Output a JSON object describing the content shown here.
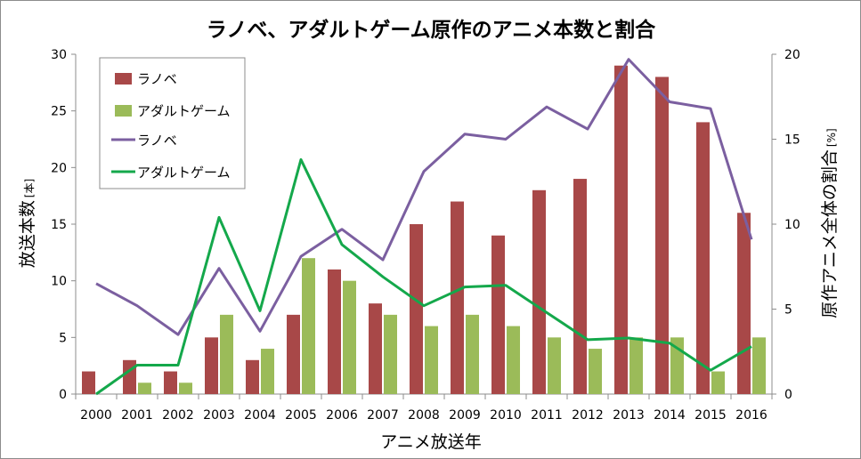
{
  "chart_data": {
    "type": "bar+line",
    "title": "ラノベ、アダルトゲーム原作のアニメ本数と割合",
    "xlabel": "アニメ放送年",
    "ylabel": "放送本数",
    "ylabel_unit": "[本]",
    "y2label": "原作アニメ全体の割合",
    "y2label_unit": "[%]",
    "ylim": [
      0,
      30
    ],
    "y2lim": [
      0,
      20
    ],
    "yticks": [
      "0",
      "5",
      "10",
      "15",
      "20",
      "25",
      "30"
    ],
    "y2ticks": [
      "0",
      "5",
      "10",
      "15",
      "20"
    ],
    "categories": [
      "2000",
      "2001",
      "2002",
      "2003",
      "2004",
      "2005",
      "2006",
      "2007",
      "2008",
      "2009",
      "2010",
      "2011",
      "2012",
      "2013",
      "2014",
      "2015",
      "2016"
    ],
    "series": [
      {
        "name": "ラノベ",
        "kind": "bar",
        "axis": "left",
        "color": "#A84848",
        "values": [
          2,
          3,
          2,
          5,
          3,
          7,
          11,
          8,
          15,
          17,
          14,
          18,
          19,
          29,
          28,
          24,
          16
        ]
      },
      {
        "name": "アダルトゲーム",
        "kind": "bar",
        "axis": "left",
        "color": "#9BBB59",
        "values": [
          0,
          1,
          1,
          7,
          4,
          12,
          10,
          7,
          6,
          7,
          6,
          5,
          4,
          5,
          5,
          2,
          5
        ]
      },
      {
        "name": "ラノベ",
        "kind": "line",
        "axis": "right",
        "color": "#7B5FA0",
        "values": [
          6.5,
          5.2,
          3.5,
          7.4,
          3.7,
          8.1,
          9.7,
          7.9,
          13.1,
          15.3,
          15.0,
          16.9,
          15.6,
          19.7,
          17.2,
          16.8,
          9.1
        ]
      },
      {
        "name": "アダルトゲーム",
        "kind": "line",
        "axis": "right",
        "color": "#14A84B",
        "values": [
          0.0,
          1.7,
          1.7,
          10.4,
          4.9,
          13.8,
          8.8,
          6.9,
          5.2,
          6.3,
          6.4,
          4.8,
          3.2,
          3.3,
          3.0,
          1.4,
          2.8
        ]
      }
    ],
    "legend": {
      "position": "top-left",
      "entries": [
        {
          "label": "ラノベ",
          "marker": "bar",
          "color": "#A84848"
        },
        {
          "label": "アダルトゲーム",
          "marker": "bar",
          "color": "#9BBB59"
        },
        {
          "label": "ラノベ",
          "marker": "line",
          "color": "#7B5FA0"
        },
        {
          "label": "アダルトゲーム",
          "marker": "line",
          "color": "#14A84B"
        }
      ]
    }
  }
}
